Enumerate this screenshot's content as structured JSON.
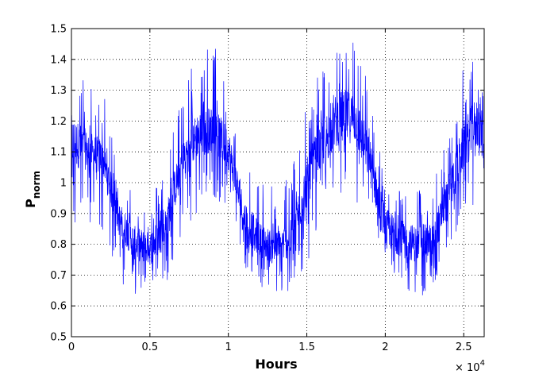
{
  "chart_data": {
    "type": "line",
    "title": "",
    "xlabel": "Hours",
    "ylabel_main": "P",
    "ylabel_sub": "norm",
    "x_multiplier": {
      "base": "× 10",
      "exponent": "4"
    },
    "xlim": [
      0,
      26304
    ],
    "ylim": [
      0.5,
      1.5
    ],
    "x_ticks": [
      {
        "value": 0,
        "label": "0"
      },
      {
        "value": 5000,
        "label": "0.5"
      },
      {
        "value": 10000,
        "label": "1"
      },
      {
        "value": 15000,
        "label": "1.5"
      },
      {
        "value": 20000,
        "label": "2"
      },
      {
        "value": 25000,
        "label": "2.5"
      }
    ],
    "y_ticks": [
      {
        "value": 0.5,
        "label": "0.5"
      },
      {
        "value": 0.6,
        "label": "0.6"
      },
      {
        "value": 0.7,
        "label": "0.7"
      },
      {
        "value": 0.8,
        "label": "0.8"
      },
      {
        "value": 0.9,
        "label": "0.9"
      },
      {
        "value": 1.0,
        "label": "1"
      },
      {
        "value": 1.1,
        "label": "1.1"
      },
      {
        "value": 1.2,
        "label": "1.2"
      },
      {
        "value": 1.3,
        "label": "1.3"
      },
      {
        "value": 1.4,
        "label": "1.4"
      },
      {
        "value": 1.5,
        "label": "1.5"
      }
    ],
    "grid": true,
    "series": [
      {
        "color": "#0000ff",
        "envelope": {
          "x": [
            0,
            1000,
            2000,
            3000,
            4000,
            5000,
            6000,
            7000,
            8000,
            9000,
            10000,
            11000,
            12000,
            13000,
            14000,
            15000,
            16000,
            17000,
            18000,
            19000,
            20000,
            21000,
            22000,
            23000,
            24000,
            25000,
            26000,
            26304
          ],
          "upper": [
            1.38,
            1.33,
            1.3,
            1.07,
            0.98,
            0.94,
            1.07,
            1.3,
            1.43,
            1.46,
            1.38,
            1.1,
            1.02,
            0.98,
            1.05,
            1.28,
            1.38,
            1.46,
            1.48,
            1.32,
            1.03,
            1.0,
            0.98,
            0.99,
            1.17,
            1.38,
            1.5,
            1.4
          ],
          "lower": [
            0.77,
            0.85,
            0.84,
            0.69,
            0.62,
            0.61,
            0.66,
            0.83,
            0.88,
            0.96,
            0.9,
            0.73,
            0.67,
            0.61,
            0.64,
            0.72,
            0.86,
            0.95,
            0.94,
            0.84,
            0.66,
            0.65,
            0.62,
            0.64,
            0.78,
            0.89,
            0.94,
            0.83
          ],
          "core_high": [
            1.22,
            1.17,
            1.14,
            0.94,
            0.86,
            0.84,
            0.92,
            1.13,
            1.23,
            1.25,
            1.18,
            0.95,
            0.87,
            0.84,
            0.88,
            1.08,
            1.21,
            1.3,
            1.3,
            1.15,
            0.92,
            0.88,
            0.86,
            0.87,
            1.02,
            1.2,
            1.3,
            1.18
          ],
          "core_low": [
            1.05,
            1.04,
            1.02,
            0.83,
            0.75,
            0.73,
            0.79,
            1.0,
            1.08,
            1.1,
            1.04,
            0.82,
            0.76,
            0.73,
            0.76,
            0.92,
            1.05,
            1.12,
            1.13,
            1.0,
            0.79,
            0.76,
            0.74,
            0.75,
            0.89,
            1.04,
            1.12,
            1.03
          ]
        }
      }
    ]
  }
}
